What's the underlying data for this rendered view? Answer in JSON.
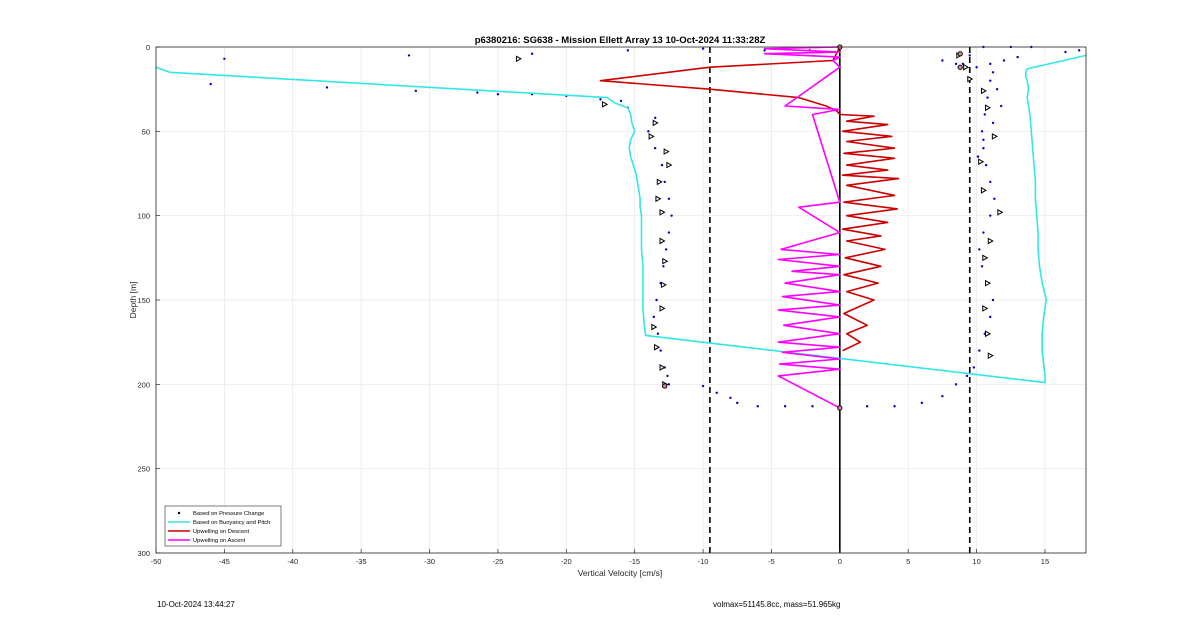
{
  "chart_data": {
    "type": "line",
    "title": "p6380216: SG638 - Mission Ellett Array 13 10-Oct-2024 11:33:28Z",
    "xlabel": "Vertical Velocity [cm/s]",
    "ylabel": "Depth [m]",
    "xlim": [
      -50,
      18
    ],
    "ylim": [
      0,
      300
    ],
    "y_reversed": true,
    "grid": true,
    "xticks": [
      -50,
      -45,
      -40,
      -35,
      -30,
      -25,
      -20,
      -15,
      -10,
      -5,
      0,
      5,
      10,
      15
    ],
    "yticks": [
      0,
      50,
      100,
      150,
      200,
      250,
      300
    ],
    "legend_position": "bottom-left",
    "reference_lines": [
      {
        "x": -9.5,
        "style": "dashed",
        "color": "#000000"
      },
      {
        "x": 9.5,
        "style": "dashed",
        "color": "#000000"
      },
      {
        "x": 0,
        "style": "solid",
        "color": "#000000",
        "y_range": [
          0,
          300
        ]
      }
    ],
    "series": [
      {
        "name": "Based on Pressure Change",
        "type": "scatter",
        "color": "#0000cc",
        "x": [
          -45,
          -46,
          -31.5,
          -37.5,
          -31,
          -26.5,
          -25,
          -22.5,
          -20,
          -17.5,
          -16,
          -15.5,
          -13.5,
          -14,
          -13.5,
          -13,
          -12.8,
          -12.5,
          -12.3,
          -12.5,
          -12.7,
          -12.9,
          -13.1,
          -13.4,
          -13.6,
          -13.3,
          -13.1,
          -12.8,
          -12.6,
          -12.5,
          -10,
          -9,
          -8,
          -7.5,
          -6,
          -4,
          -2,
          0,
          2,
          4,
          6,
          7.5,
          8.5,
          9.3,
          9.8,
          10.2,
          10.6,
          11.0,
          11.2,
          10.8,
          10.4,
          10.2,
          10.5,
          11.0,
          11.3,
          11.0,
          10.7,
          10.5,
          10.4,
          10.6,
          10.8,
          11.0,
          11.2,
          11.5,
          11.8,
          11.2,
          10.5,
          10.1,
          9.5,
          8.5,
          7.5,
          9.0,
          10.0,
          11.0,
          12.0,
          13.0,
          16.5,
          17.5,
          12.5,
          14.0,
          -22.5,
          -15.5,
          -10,
          -5.5,
          -2.2,
          10.5
        ],
        "y": [
          7,
          22,
          5,
          24,
          26,
          27,
          28,
          28,
          29,
          31,
          32,
          36,
          42,
          50,
          60,
          70,
          80,
          90,
          100,
          110,
          120,
          130,
          140,
          150,
          160,
          170,
          180,
          190,
          195,
          200,
          201,
          205,
          208,
          211,
          213,
          213,
          213,
          213,
          213,
          213,
          211,
          207,
          200,
          195,
          190,
          180,
          170,
          160,
          150,
          140,
          130,
          120,
          110,
          100,
          90,
          80,
          70,
          60,
          50,
          40,
          30,
          20,
          15,
          25,
          35,
          45,
          55,
          65,
          5,
          10,
          8,
          10,
          12,
          10,
          8,
          6,
          3,
          2,
          0,
          0,
          4,
          2,
          1,
          2,
          2,
          0
        ]
      },
      {
        "name": "Based on Buoyancy and Pitch",
        "type": "line",
        "color": "#33e6e6",
        "x": [
          -50,
          -49,
          -17,
          -16.5,
          -15.5,
          -15.3,
          -15.2,
          -15.0,
          -15.3,
          -15.4,
          -15.3,
          -15.1,
          -14.9,
          -14.8,
          -14.7,
          -14.6,
          -14.6,
          -14.5,
          -14.5,
          -14.5,
          -14.4,
          -14.4,
          -14.4,
          -14.4,
          -14.3,
          -14.2,
          15.0,
          15.0,
          14.9,
          14.8,
          14.8,
          14.9,
          15.0,
          15.1,
          14.8,
          14.6,
          14.5,
          14.5,
          14.4,
          14.3,
          14.3,
          14.2,
          14.1,
          14.0,
          13.9,
          13.8,
          13.7,
          13.8,
          13.7,
          13.6,
          13.6,
          13.7,
          18
        ],
        "y": [
          12,
          15,
          30,
          33,
          36,
          40,
          45,
          50,
          55,
          60,
          65,
          70,
          75,
          80,
          85,
          90,
          95,
          100,
          110,
          120,
          130,
          140,
          150,
          155,
          165,
          171,
          199,
          195,
          188,
          180,
          170,
          160,
          155,
          150,
          140,
          130,
          120,
          110,
          100,
          90,
          80,
          70,
          60,
          50,
          40,
          35,
          30,
          25,
          20,
          18,
          15,
          13,
          5
        ]
      },
      {
        "name": "Upwelling on Descent",
        "type": "line",
        "color": "#cc0000",
        "x": [
          0,
          -0.5,
          -9.5,
          -17.5,
          -9.5,
          -3,
          -1,
          -0.2,
          0,
          2.5,
          0.5,
          3.5,
          0.2,
          3.8,
          0.5,
          4.0,
          0.3,
          4.0,
          0.5,
          3.5,
          0.2,
          4.3,
          0.5,
          4.0,
          0.3,
          4.2,
          0.5,
          3.5,
          0.2,
          3.0,
          0.5,
          3.3,
          0.4,
          3.0,
          0.3,
          2.8,
          0.5,
          2.5,
          0.3,
          2.0,
          0.5,
          1.5,
          0.2
        ],
        "y": [
          0,
          8,
          12,
          20,
          25,
          30,
          35,
          38,
          40,
          41,
          44,
          46,
          50,
          53,
          56,
          60,
          63,
          66,
          70,
          73,
          76,
          78,
          82,
          88,
          92,
          96,
          100,
          104,
          108,
          112,
          115,
          120,
          125,
          130,
          135,
          140,
          145,
          150,
          158,
          165,
          170,
          175,
          180
        ]
      },
      {
        "name": "Upwelling on Ascent",
        "type": "line",
        "color": "#ff00ff",
        "x": [
          0,
          -5.5,
          0,
          -5.5,
          0,
          -0.5,
          0,
          -4,
          0,
          -2,
          0,
          -3,
          0,
          -4.3,
          0,
          -4.5,
          0,
          -3.5,
          0,
          -4,
          0,
          -4.2,
          0,
          -4.5,
          0,
          -4.1,
          0,
          -4.5,
          0,
          -4.2,
          0,
          -4.4,
          0,
          -4.5,
          0
        ],
        "y": [
          0,
          1,
          3,
          4,
          6,
          8,
          12,
          35,
          37,
          40,
          92,
          95,
          110,
          120,
          123,
          126,
          130,
          133,
          135,
          140,
          145,
          148,
          153,
          156,
          160,
          165,
          170,
          175,
          178,
          181,
          185,
          188,
          191,
          195,
          214
        ]
      }
    ],
    "annotations": {
      "triangles": [
        [
          -23.5,
          7
        ],
        [
          -17.2,
          34
        ],
        [
          -13.5,
          45
        ],
        [
          -13.8,
          53
        ],
        [
          -12.7,
          62
        ],
        [
          -12.5,
          70
        ],
        [
          -13.2,
          80
        ],
        [
          -13.3,
          90
        ],
        [
          -13.0,
          98
        ],
        [
          -13.0,
          115
        ],
        [
          -12.8,
          127
        ],
        [
          -12.9,
          141
        ],
        [
          -13.0,
          155
        ],
        [
          -13.6,
          166
        ],
        [
          -13.4,
          178
        ],
        [
          -13.0,
          190
        ],
        [
          -12.8,
          200
        ],
        [
          8.7,
          5
        ],
        [
          9.2,
          12
        ],
        [
          9.5,
          19
        ],
        [
          10.5,
          26
        ],
        [
          10.8,
          36
        ],
        [
          11.3,
          53
        ],
        [
          10.3,
          68
        ],
        [
          10.5,
          85
        ],
        [
          11.7,
          98
        ],
        [
          11.0,
          115
        ],
        [
          10.6,
          125
        ],
        [
          10.8,
          140
        ],
        [
          10.6,
          155
        ],
        [
          10.8,
          170
        ],
        [
          11.0,
          183
        ]
      ],
      "circles": [
        [
          0,
          0
        ],
        [
          -12.8,
          201
        ],
        [
          0,
          214
        ],
        [
          8.8,
          4
        ],
        [
          8.8,
          12
        ]
      ]
    },
    "footer": {
      "timestamp": "10-Oct-2024 13:44:27",
      "info": "volmax=51145.8cc, mass=51.965kg"
    }
  }
}
